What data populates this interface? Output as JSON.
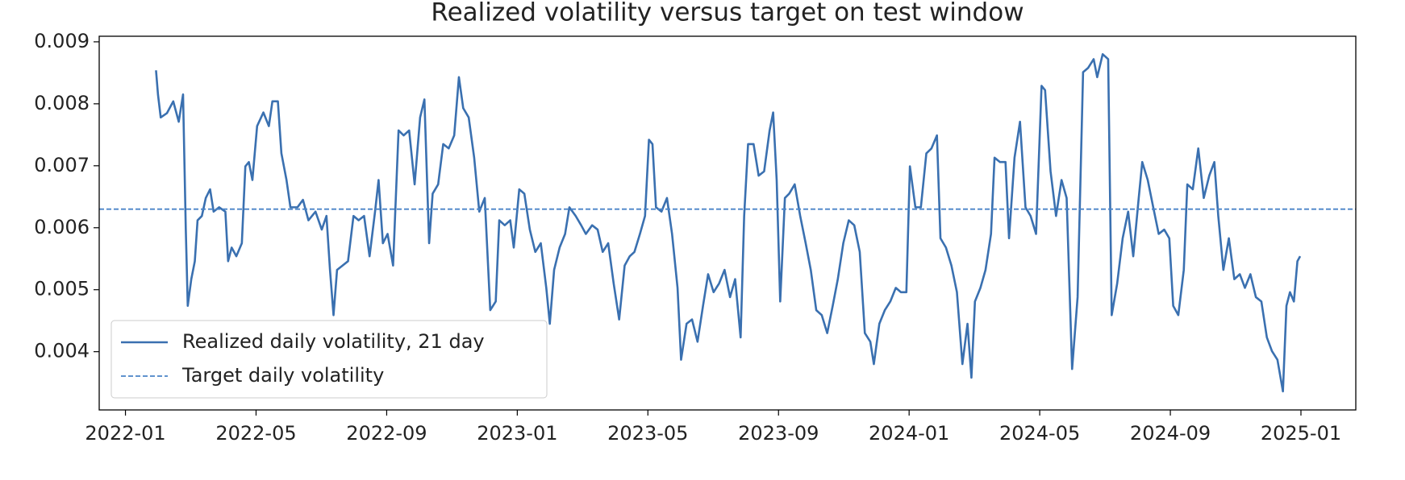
{
  "chart_data": {
    "type": "line",
    "title": "Realized volatility versus target on test window",
    "xlim": [
      2021.933,
      2025.14
    ],
    "xticks": [
      {
        "value": 2022.0,
        "label": "2022-01"
      },
      {
        "value": 2022.3333,
        "label": "2022-05"
      },
      {
        "value": 2022.6667,
        "label": "2022-09"
      },
      {
        "value": 2023.0,
        "label": "2023-01"
      },
      {
        "value": 2023.3333,
        "label": "2023-05"
      },
      {
        "value": 2023.6667,
        "label": "2023-09"
      },
      {
        "value": 2024.0,
        "label": "2024-01"
      },
      {
        "value": 2024.3333,
        "label": "2024-05"
      },
      {
        "value": 2024.6667,
        "label": "2024-09"
      },
      {
        "value": 2025.0,
        "label": "2025-01"
      }
    ],
    "ylim": [
      0.00306,
      0.00909
    ],
    "yticks": [
      0.004,
      0.005,
      0.006,
      0.007,
      0.008,
      0.009
    ],
    "legend": "lower left",
    "x": [
      2022.078,
      2022.083,
      2022.09,
      2022.106,
      2022.122,
      2022.136,
      2022.147,
      2022.154,
      2022.159,
      2022.168,
      2022.177,
      2022.184,
      2022.195,
      2022.205,
      2022.216,
      2022.225,
      2022.239,
      2022.255,
      2022.262,
      2022.271,
      2022.283,
      2022.297,
      2022.306,
      2022.315,
      2022.324,
      2022.336,
      2022.352,
      2022.366,
      2022.375,
      2022.389,
      2022.398,
      2022.411,
      2022.421,
      2022.439,
      2022.453,
      2022.467,
      2022.485,
      2022.501,
      2022.513,
      2022.522,
      2022.531,
      2022.54,
      2022.554,
      2022.568,
      2022.582,
      2022.595,
      2022.609,
      2022.623,
      2022.637,
      2022.646,
      2022.657,
      2022.669,
      2022.683,
      2022.697,
      2022.71,
      2022.724,
      2022.738,
      2022.752,
      2022.763,
      2022.775,
      2022.784,
      2022.798,
      2022.811,
      2022.825,
      2022.839,
      2022.851,
      2022.862,
      2022.876,
      2022.89,
      2022.903,
      2022.917,
      2022.931,
      2022.945,
      2022.954,
      2022.968,
      2022.982,
      2022.991,
      2023.005,
      2023.018,
      2023.032,
      2023.046,
      2023.06,
      2023.074,
      2023.083,
      2023.094,
      2023.108,
      2023.122,
      2023.133,
      2023.149,
      2023.163,
      2023.175,
      2023.191,
      2023.205,
      2023.218,
      2023.232,
      2023.246,
      2023.26,
      2023.274,
      2023.287,
      2023.299,
      2023.313,
      2023.326,
      2023.336,
      2023.345,
      2023.354,
      2023.368,
      2023.382,
      2023.395,
      2023.409,
      2023.418,
      2023.432,
      2023.446,
      2023.46,
      2023.474,
      2023.487,
      2023.501,
      2023.515,
      2023.529,
      2023.543,
      2023.556,
      2023.57,
      2023.579,
      2023.589,
      2023.603,
      2023.616,
      2023.63,
      2023.644,
      2023.653,
      2023.662,
      2023.671,
      2023.683,
      2023.694,
      2023.708,
      2023.722,
      2023.736,
      2023.749,
      2023.763,
      2023.777,
      2023.791,
      2023.805,
      2023.818,
      2023.832,
      2023.846,
      2023.86,
      2023.874,
      2023.887,
      2023.901,
      2023.91,
      2023.924,
      2023.938,
      2023.952,
      2023.966,
      2023.979,
      2023.993,
      2024.002,
      2024.016,
      2024.03,
      2024.044,
      2024.057,
      2024.071,
      2024.08,
      2024.094,
      2024.108,
      2024.122,
      2024.136,
      2024.149,
      2024.159,
      2024.168,
      2024.182,
      2024.195,
      2024.209,
      2024.218,
      2024.232,
      2024.246,
      2024.255,
      2024.269,
      2024.283,
      2024.297,
      2024.31,
      2024.324,
      2024.338,
      2024.347,
      2024.361,
      2024.375,
      2024.389,
      2024.402,
      2024.416,
      2024.43,
      2024.444,
      2024.457,
      2024.471,
      2024.48,
      2024.494,
      2024.508,
      2024.517,
      2024.531,
      2024.545,
      2024.559,
      2024.572,
      2024.586,
      2024.595,
      2024.609,
      2024.623,
      2024.637,
      2024.651,
      2024.664,
      2024.674,
      2024.687,
      2024.701,
      2024.71,
      2024.724,
      2024.738,
      2024.752,
      2024.766,
      2024.779,
      2024.789,
      2024.802,
      2024.816,
      2024.83,
      2024.844,
      2024.857,
      2024.871,
      2024.885,
      2024.899,
      2024.913,
      2024.926,
      2024.94,
      2024.954,
      2024.963,
      2024.972,
      2024.982,
      2024.991,
      2024.998
    ],
    "series": [
      {
        "name": "Realized daily volatility, 21 day",
        "color": "#3a70b0",
        "values": [
          0.00854,
          0.00815,
          0.00778,
          0.00785,
          0.00804,
          0.00771,
          0.00815,
          0.00597,
          0.00474,
          0.00517,
          0.00546,
          0.00612,
          0.00619,
          0.00648,
          0.00662,
          0.00626,
          0.00633,
          0.00626,
          0.00546,
          0.00568,
          0.00554,
          0.00575,
          0.00699,
          0.00706,
          0.00677,
          0.00764,
          0.00786,
          0.00764,
          0.00804,
          0.00804,
          0.0072,
          0.00677,
          0.00633,
          0.00633,
          0.00645,
          0.00612,
          0.00626,
          0.00597,
          0.00619,
          0.00532,
          0.00459,
          0.00532,
          0.00539,
          0.00546,
          0.00619,
          0.00612,
          0.00619,
          0.00554,
          0.00626,
          0.00677,
          0.00575,
          0.0059,
          0.00539,
          0.00757,
          0.00749,
          0.00757,
          0.0067,
          0.00778,
          0.00807,
          0.00575,
          0.00655,
          0.0067,
          0.00735,
          0.00728,
          0.00749,
          0.00843,
          0.00793,
          0.00778,
          0.00713,
          0.00626,
          0.00648,
          0.00467,
          0.00481,
          0.00612,
          0.00604,
          0.00612,
          0.00568,
          0.00662,
          0.00655,
          0.00597,
          0.00561,
          0.00575,
          0.00503,
          0.00445,
          0.00532,
          0.00568,
          0.0059,
          0.00633,
          0.00619,
          0.00604,
          0.0059,
          0.00604,
          0.00597,
          0.00561,
          0.00575,
          0.0051,
          0.00452,
          0.00539,
          0.00554,
          0.00561,
          0.0059,
          0.00619,
          0.00742,
          0.00735,
          0.00633,
          0.00626,
          0.00648,
          0.0059,
          0.00503,
          0.00387,
          0.00445,
          0.00452,
          0.00416,
          0.00474,
          0.00525,
          0.00496,
          0.0051,
          0.00532,
          0.00488,
          0.00517,
          0.00423,
          0.00619,
          0.00735,
          0.00735,
          0.00684,
          0.00691,
          0.00757,
          0.00786,
          0.00677,
          0.00481,
          0.00648,
          0.00655,
          0.0067,
          0.00619,
          0.00575,
          0.00532,
          0.00467,
          0.00459,
          0.0043,
          0.00474,
          0.00517,
          0.00575,
          0.00612,
          0.00604,
          0.00561,
          0.0043,
          0.00416,
          0.0038,
          0.00445,
          0.00467,
          0.00481,
          0.00503,
          0.00496,
          0.00496,
          0.00699,
          0.00633,
          0.00633,
          0.0072,
          0.00728,
          0.00749,
          0.00583,
          0.00568,
          0.00539,
          0.00496,
          0.0038,
          0.00445,
          0.00358,
          0.00481,
          0.00503,
          0.00532,
          0.0059,
          0.00713,
          0.00706,
          0.00706,
          0.00583,
          0.00713,
          0.00771,
          0.00633,
          0.00619,
          0.0059,
          0.00829,
          0.00822,
          0.00691,
          0.00619,
          0.00677,
          0.00648,
          0.00372,
          0.00488,
          0.00851,
          0.00858,
          0.00872,
          0.00843,
          0.0088,
          0.00872,
          0.00459,
          0.0051,
          0.00583,
          0.00626,
          0.00554,
          0.00648,
          0.00706,
          0.00677,
          0.00633,
          0.0059,
          0.00597,
          0.00583,
          0.00474,
          0.00459,
          0.00532,
          0.0067,
          0.00662,
          0.00728,
          0.00648,
          0.00684,
          0.00706,
          0.00619,
          0.00532,
          0.00583,
          0.00517,
          0.00525,
          0.00503,
          0.00525,
          0.00488,
          0.00481,
          0.00423,
          0.00401,
          0.00387,
          0.00336,
          0.00474,
          0.00496,
          0.00481,
          0.00546,
          0.00554
        ]
      }
    ],
    "target": {
      "name": "Target daily volatility",
      "value": 0.0063,
      "color": "#4a84c8"
    }
  }
}
